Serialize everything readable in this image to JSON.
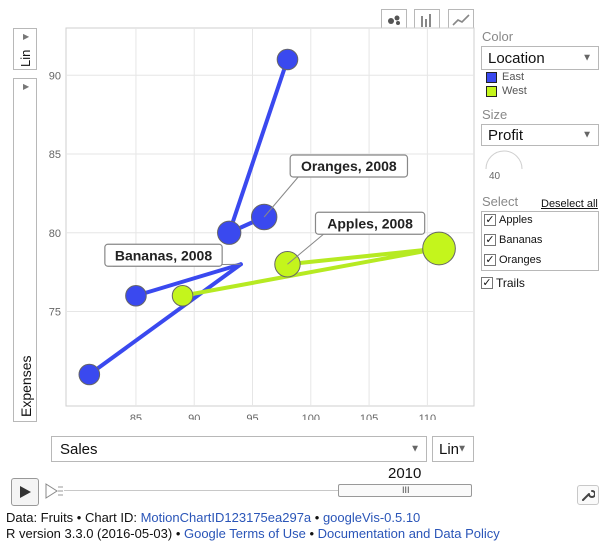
{
  "chart_data": {
    "type": "scatter",
    "subtype": "motion-chart-bubble",
    "xlabel": "Sales",
    "ylabel": "Expenses",
    "x_scale": "Lin",
    "y_scale": "Lin",
    "xlim": [
      79,
      114
    ],
    "ylim": [
      69,
      93
    ],
    "x_ticks": [
      85,
      90,
      95,
      100,
      105,
      110
    ],
    "y_ticks": [
      75,
      80,
      85,
      90
    ],
    "grid": true,
    "series": [
      {
        "name": "East",
        "color": "#3a49ef",
        "trails": [
          {
            "id": "Bananas",
            "points": [
              {
                "x": 81,
                "y": 71
              },
              {
                "x": 94,
                "y": 78
              }
            ]
          },
          {
            "id": "Bananas-b",
            "points": [
              {
                "x": 85,
                "y": 76
              },
              {
                "x": 94,
                "y": 78
              }
            ]
          },
          {
            "id": "Oranges",
            "points": [
              {
                "x": 93,
                "y": 80
              },
              {
                "x": 98,
                "y": 91
              }
            ]
          },
          {
            "id": "Oranges-b",
            "points": [
              {
                "x": 93,
                "y": 80
              },
              {
                "x": 96,
                "y": 81
              }
            ]
          }
        ],
        "points": [
          {
            "x": 81,
            "y": 71,
            "profit": 1
          },
          {
            "x": 85,
            "y": 76,
            "profit": 1
          },
          {
            "x": 93,
            "y": 80,
            "profit": 2
          },
          {
            "x": 96,
            "y": 81,
            "profit": 3
          },
          {
            "x": 98,
            "y": 91,
            "profit": 1
          }
        ]
      },
      {
        "name": "West",
        "color": "#c4f51c",
        "trails": [
          {
            "id": "Apples",
            "points": [
              {
                "x": 89,
                "y": 76
              },
              {
                "x": 111,
                "y": 79
              },
              {
                "x": 98,
                "y": 78
              }
            ]
          }
        ],
        "points": [
          {
            "x": 89,
            "y": 76,
            "profit": 1
          },
          {
            "x": 98,
            "y": 78,
            "profit": 3
          },
          {
            "x": 111,
            "y": 79,
            "profit": 8
          }
        ]
      }
    ],
    "annotations": [
      {
        "text": "Oranges, 2008",
        "x": 96,
        "y": 81
      },
      {
        "text": "Apples, 2008",
        "x": 98,
        "y": 78
      },
      {
        "text": "Bananas, 2008",
        "x": 94,
        "y": 78
      }
    ]
  },
  "controls": {
    "chart_types": [
      "bubble-chart-icon",
      "bar-chart-icon",
      "line-chart-icon"
    ],
    "y_scale_label": "Lin",
    "y_axis_select_label": "Expenses",
    "x_axis_select_label": "Sales",
    "x_scale_label": "Lin",
    "color_heading": "Color",
    "color_select": "Location",
    "legend": [
      {
        "label": "East",
        "color": "#3a49ef"
      },
      {
        "label": "West",
        "color": "#c4f51c"
      }
    ],
    "size_heading": "Size",
    "size_select": "Profit",
    "size_value": "40",
    "select_heading": "Select",
    "deselect_all": "Deselect all",
    "select_items": [
      "Apples",
      "Bananas",
      "Oranges"
    ],
    "trails_label": "Trails",
    "year": "2010",
    "play_icon": "play-icon",
    "speed_icon": "speed-icon",
    "settings_icon": "wrench-icon"
  },
  "footer": {
    "line1_prefix": "Data: Fruits • Chart ID: ",
    "chart_id_link": "MotionChartID123175ea297a",
    "sep1": " • ",
    "googlevis_link": "googleVis-0.5.10",
    "line2_prefix": "R version 3.3.0 (2016-05-03) • ",
    "terms_link": "Google Terms of Use",
    "sep2": " • ",
    "policy_link": "Documentation and Data Policy"
  },
  "colors": {
    "accent": "#2a55b8",
    "grid": "#e4e4e4",
    "trail_east": "#3a49ef",
    "trail_west": "#b6ea22"
  }
}
